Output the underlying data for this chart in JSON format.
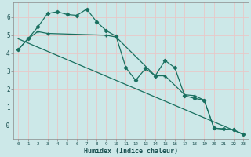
{
  "xlabel": "Humidex (Indice chaleur)",
  "background_color": "#cce8e8",
  "grid_color": "#e8c8c8",
  "line_color": "#1a7060",
  "xlim": [
    -0.5,
    23.5
  ],
  "ylim": [
    -0.75,
    6.8
  ],
  "xticks": [
    0,
    1,
    2,
    3,
    4,
    5,
    6,
    7,
    8,
    9,
    10,
    11,
    12,
    13,
    14,
    15,
    16,
    17,
    18,
    19,
    20,
    21,
    22,
    23
  ],
  "yticks": [
    0,
    1,
    2,
    3,
    4,
    5,
    6
  ],
  "ytick_labels": [
    "-0",
    "1",
    "2",
    "3",
    "4",
    "5",
    "6"
  ],
  "line1_x": [
    0,
    1,
    2,
    3,
    4,
    5,
    6,
    7,
    8,
    9,
    10,
    11,
    12,
    13,
    14,
    15,
    16,
    17,
    18,
    19,
    20,
    21,
    22,
    23
  ],
  "line1_y": [
    4.2,
    4.8,
    5.45,
    6.2,
    6.3,
    6.15,
    6.1,
    6.45,
    5.75,
    5.25,
    4.95,
    3.2,
    2.5,
    3.15,
    2.75,
    3.6,
    3.2,
    1.65,
    1.5,
    1.4,
    -0.15,
    -0.2,
    -0.25,
    -0.5
  ],
  "line2_x": [
    0,
    1,
    2,
    3,
    9,
    10,
    14,
    15,
    17,
    18,
    19,
    20,
    21,
    22,
    23
  ],
  "line2_y": [
    4.2,
    4.8,
    5.2,
    5.1,
    5.0,
    4.9,
    2.75,
    2.75,
    1.7,
    1.65,
    1.4,
    -0.15,
    -0.2,
    -0.25,
    -0.5
  ],
  "line3_x": [
    0,
    23
  ],
  "line3_y": [
    4.8,
    -0.5
  ]
}
